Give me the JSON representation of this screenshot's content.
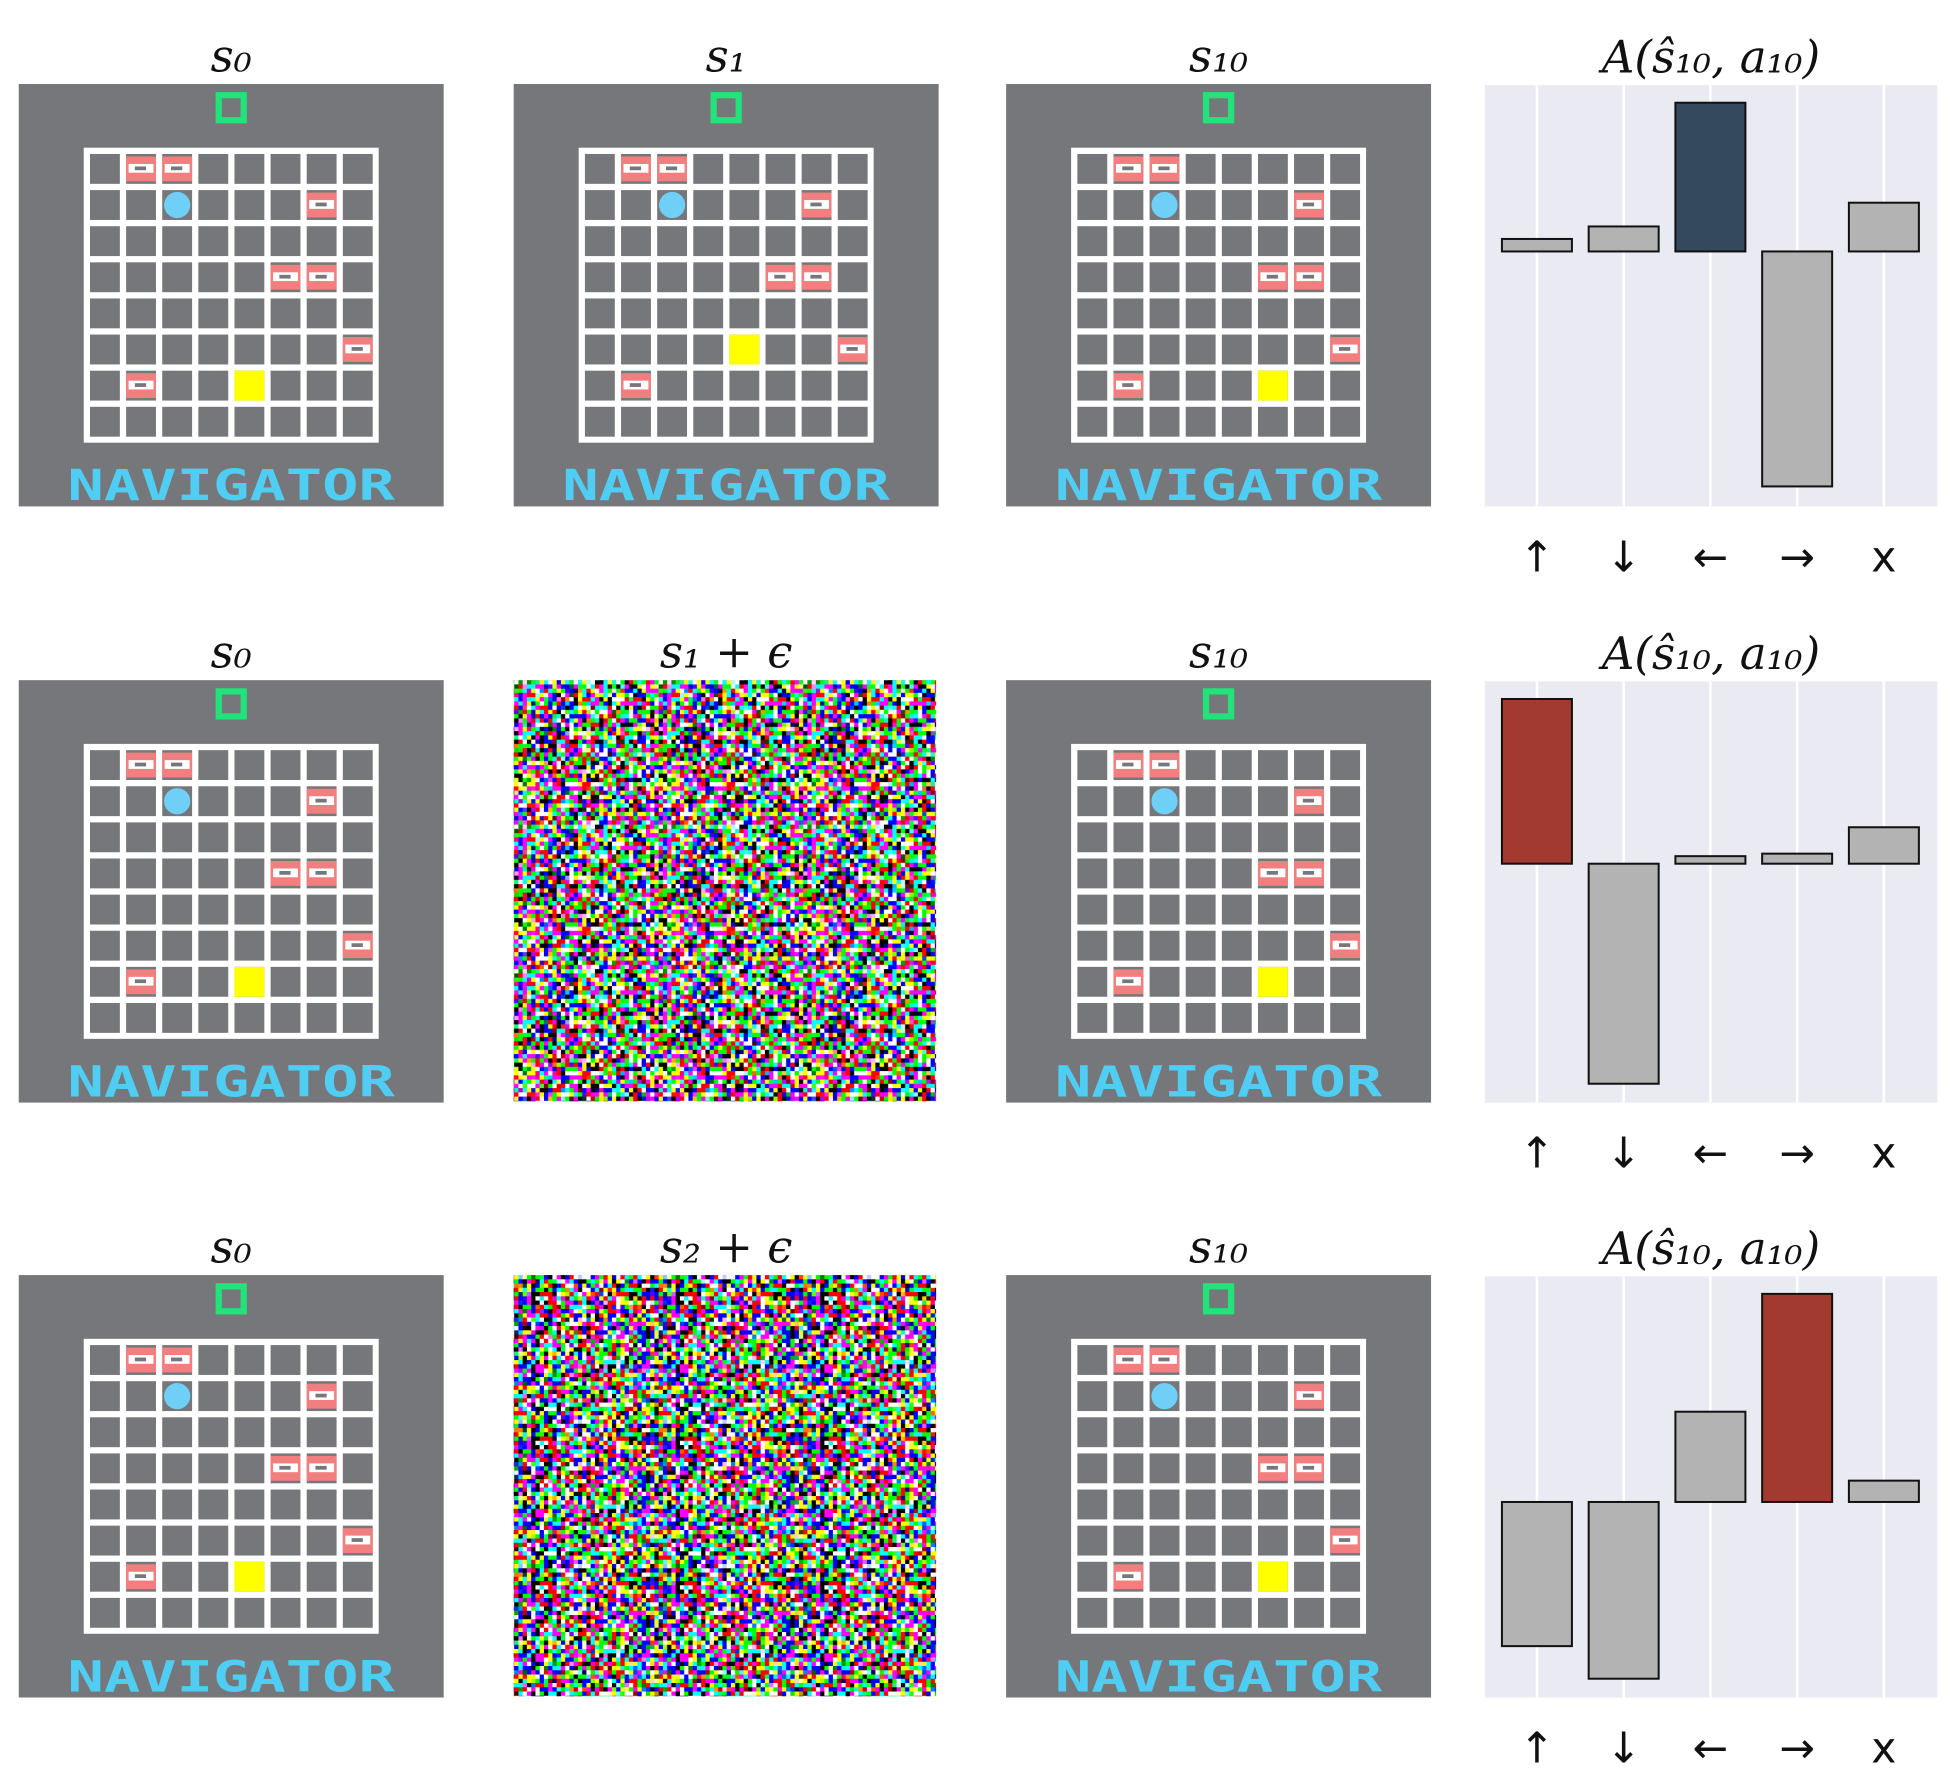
{
  "panels": [
    [
      "s₀",
      "s₁",
      "s₁₀"
    ],
    [
      "s₀",
      "s₁ + ϵ",
      "s₁₀"
    ],
    [
      "s₀",
      "s₂ + ϵ",
      "s₁₀"
    ]
  ],
  "game_label": "NAVIGATOR",
  "chart_data": [
    {
      "type": "bar",
      "title": "A(ŝ₁₀, a₁₀)",
      "categories": [
        "↑",
        "↓",
        "←",
        "→",
        "x"
      ],
      "values": [
        0.1,
        0.2,
        1.19,
        -1.88,
        0.39
      ],
      "colors": [
        "#b3b3b3",
        "#b3b3b3",
        "#34495e",
        "#b3b3b3",
        "#b3b3b3"
      ],
      "ylim": [
        -2.04,
        1.33
      ],
      "grid": true
    },
    {
      "type": "bar",
      "title": "A(ŝ₁₀, a₁₀)",
      "categories": [
        "↑",
        "↓",
        "←",
        "→",
        "x"
      ],
      "values": [
        1.31,
        -1.75,
        0.06,
        0.08,
        0.29
      ],
      "colors": [
        "#a33a30",
        "#b3b3b3",
        "#b3b3b3",
        "#b3b3b3",
        "#b3b3b3"
      ],
      "ylim": [
        -1.9,
        1.45
      ],
      "grid": true
    },
    {
      "type": "bar",
      "title": "A(ŝ₁₀, a₁₀)",
      "categories": [
        "↑",
        "↓",
        "←",
        "→",
        "x"
      ],
      "values": [
        -1.15,
        -1.41,
        0.72,
        1.66,
        0.17
      ],
      "colors": [
        "#b3b3b3",
        "#b3b3b3",
        "#b3b3b3",
        "#a33a30",
        "#b3b3b3"
      ],
      "ylim": [
        -1.56,
        1.8
      ],
      "grid": true
    }
  ]
}
